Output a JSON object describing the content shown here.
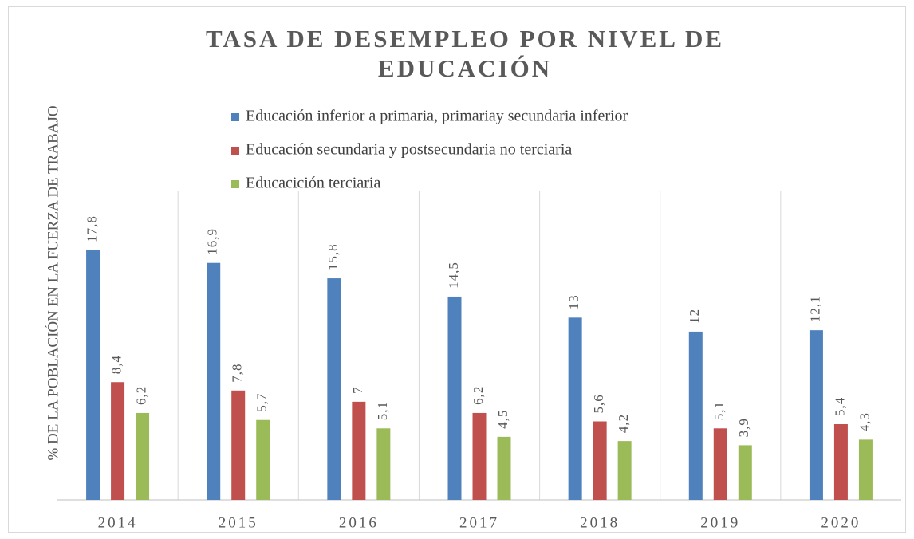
{
  "chart_data": {
    "type": "bar",
    "title": "TASA DE DESEMPLEO POR NIVEL DE EDUCACIÓN",
    "y_label": "% DE LA POBLACIÓN EN LA FUERZA  DE TRABAJO",
    "categories": [
      "2014",
      "2015",
      "2016",
      "2017",
      "2018",
      "2019",
      "2020"
    ],
    "series": [
      {
        "name": "Educación inferior a primaria, primariay secundaria inferior",
        "color": "#4f81bd",
        "values": [
          17.8,
          16.9,
          15.8,
          14.5,
          13,
          12,
          12.1
        ],
        "value_labels": [
          "17,8",
          "16,9",
          "15,8",
          "14,5",
          "13",
          "12",
          "12,1"
        ]
      },
      {
        "name": "Educación secundaria y postsecundaria no terciaria",
        "color": "#c0504d",
        "values": [
          8.4,
          7.8,
          7,
          6.2,
          5.6,
          5.1,
          5.4
        ],
        "value_labels": [
          "8,4",
          "7,8",
          "7",
          "6,2",
          "5,6",
          "5,1",
          "5,4"
        ]
      },
      {
        "name": "Educacición terciaria",
        "color": "#9bbb59",
        "values": [
          6.2,
          5.7,
          5.1,
          4.5,
          4.2,
          3.9,
          4.3
        ],
        "value_labels": [
          "6,2",
          "5,7",
          "5,1",
          "4,5",
          "4,2",
          "3,9",
          "4,3"
        ]
      }
    ],
    "ylim": [
      0,
      22
    ]
  }
}
